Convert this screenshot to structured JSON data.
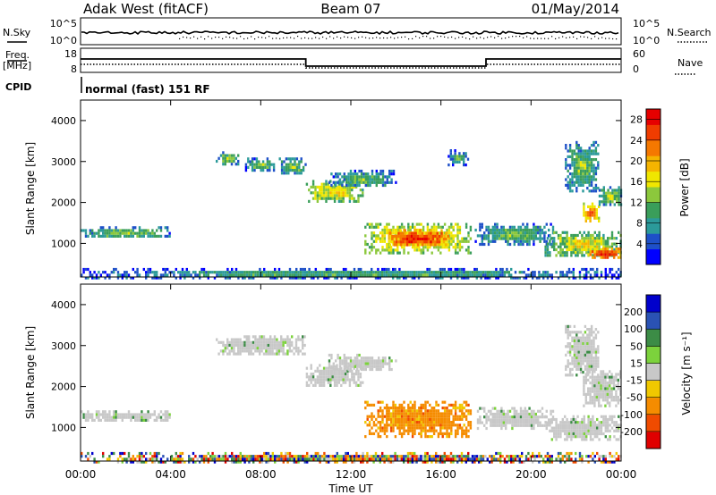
{
  "header": {
    "station": "Adak West (fitACF)",
    "beam": "Beam 07",
    "date": "01/May/2014"
  },
  "top_panels": {
    "nsky_label": "N.Sky",
    "nsearch_label": "N.Search",
    "log_ticks": [
      "10^5",
      "10^0"
    ],
    "freq_label_line1": "Freq.",
    "freq_label_line2": "[MHz]",
    "freq_ticks": [
      18,
      8
    ],
    "nave_label": "Nave",
    "nave_ticks": [
      60,
      0
    ],
    "cpid_label": "CPID",
    "cpid_text": "normal (fast) 151 RF"
  },
  "chart_data": [
    {
      "type": "heatmap",
      "name": "power",
      "ylabel": "Slant Range [km]",
      "xlabel": "Time UT",
      "xlim": [
        0,
        24
      ],
      "ylim": [
        180,
        4500
      ],
      "x_ticks": [
        "00:00",
        "04:00",
        "08:00",
        "12:00",
        "16:00",
        "20:00",
        "00:00"
      ],
      "y_ticks": [
        1000,
        2000,
        3000,
        4000
      ],
      "colorbar": {
        "label": "Power [dB]",
        "ticks": [
          4,
          8,
          12,
          16,
          20,
          24,
          28
        ],
        "range": [
          0,
          30
        ],
        "colors": [
          "#0000ff",
          "#1e50c8",
          "#2b9a9a",
          "#3a9e5a",
          "#8cc83c",
          "#f0e600",
          "#f5b400",
          "#f57800",
          "#f03c00",
          "#e60000"
        ]
      },
      "regions": [
        {
          "t0": 0.0,
          "t1": 4.0,
          "r0": 1150,
          "r1": 1420,
          "level": 8
        },
        {
          "t0": 6.0,
          "t1": 7.0,
          "r0": 2950,
          "r1": 3250,
          "level": 9
        },
        {
          "t0": 7.3,
          "t1": 8.6,
          "r0": 2800,
          "r1": 3100,
          "level": 8
        },
        {
          "t0": 8.8,
          "t1": 10.0,
          "r0": 2700,
          "r1": 3100,
          "level": 8
        },
        {
          "t0": 10.0,
          "t1": 12.5,
          "r0": 2050,
          "r1": 2550,
          "level": 13
        },
        {
          "t0": 11.0,
          "t1": 14.0,
          "r0": 2400,
          "r1": 2800,
          "level": 7
        },
        {
          "t0": 12.6,
          "t1": 17.3,
          "r0": 800,
          "r1": 1500,
          "level": 15
        },
        {
          "t0": 13.6,
          "t1": 16.3,
          "r0": 950,
          "r1": 1350,
          "level": 22
        },
        {
          "t0": 16.3,
          "t1": 17.2,
          "r0": 2950,
          "r1": 3300,
          "level": 6
        },
        {
          "t0": 17.5,
          "t1": 21.0,
          "r0": 1000,
          "r1": 1500,
          "level": 7
        },
        {
          "t0": 20.6,
          "t1": 24.0,
          "r0": 700,
          "r1": 1300,
          "level": 12
        },
        {
          "t0": 22.5,
          "t1": 24.0,
          "r0": 650,
          "r1": 900,
          "level": 22
        },
        {
          "t0": 21.5,
          "t1": 23.0,
          "r0": 2300,
          "r1": 3500,
          "level": 8
        },
        {
          "t0": 22.3,
          "t1": 23.0,
          "r0": 1550,
          "r1": 2000,
          "level": 18
        },
        {
          "t0": 23.0,
          "t1": 24.0,
          "r0": 1950,
          "r1": 2400,
          "level": 10
        },
        {
          "t0": 0.0,
          "t1": 24.0,
          "r0": 180,
          "r1": 400,
          "level": 6
        }
      ]
    },
    {
      "type": "heatmap",
      "name": "velocity",
      "ylabel": "Slant Range [km]",
      "xlabel": "Time UT",
      "xlim": [
        0,
        24
      ],
      "ylim": [
        180,
        4500
      ],
      "x_ticks": [
        "00:00",
        "04:00",
        "08:00",
        "12:00",
        "16:00",
        "20:00",
        "00:00"
      ],
      "y_ticks": [
        1000,
        2000,
        3000,
        4000
      ],
      "colorbar": {
        "label": "Velocity [m s⁻¹]",
        "ticks": [
          200,
          100,
          50,
          15,
          -15,
          -50,
          -100,
          -200
        ],
        "colors": [
          "#0000cc",
          "#2a52b4",
          "#3c8c46",
          "#7cd23c",
          "#c8c8c8",
          "#f0c800",
          "#f58c00",
          "#f04b00",
          "#e00000"
        ]
      },
      "regions": [
        {
          "t0": 0.0,
          "t1": 4.0,
          "r0": 1150,
          "r1": 1420,
          "category": "ground"
        },
        {
          "t0": 6.0,
          "t1": 10.0,
          "r0": 2800,
          "r1": 3250,
          "category": "ground"
        },
        {
          "t0": 10.0,
          "t1": 12.5,
          "r0": 2050,
          "r1": 2550,
          "category": "ground"
        },
        {
          "t0": 11.0,
          "t1": 14.0,
          "r0": 2400,
          "r1": 2800,
          "category": "ground"
        },
        {
          "t0": 12.6,
          "t1": 17.3,
          "r0": 800,
          "r1": 1650,
          "category": "away"
        },
        {
          "t0": 17.5,
          "t1": 21.0,
          "r0": 1000,
          "r1": 1500,
          "category": "ground"
        },
        {
          "t0": 20.6,
          "t1": 24.0,
          "r0": 700,
          "r1": 1300,
          "category": "ground"
        },
        {
          "t0": 21.5,
          "t1": 23.0,
          "r0": 2300,
          "r1": 3500,
          "category": "ground"
        },
        {
          "t0": 22.3,
          "t1": 24.0,
          "r0": 1550,
          "r1": 2400,
          "category": "ground"
        },
        {
          "t0": 0.0,
          "t1": 24.0,
          "r0": 180,
          "r1": 400,
          "category": "mixed"
        }
      ]
    }
  ]
}
